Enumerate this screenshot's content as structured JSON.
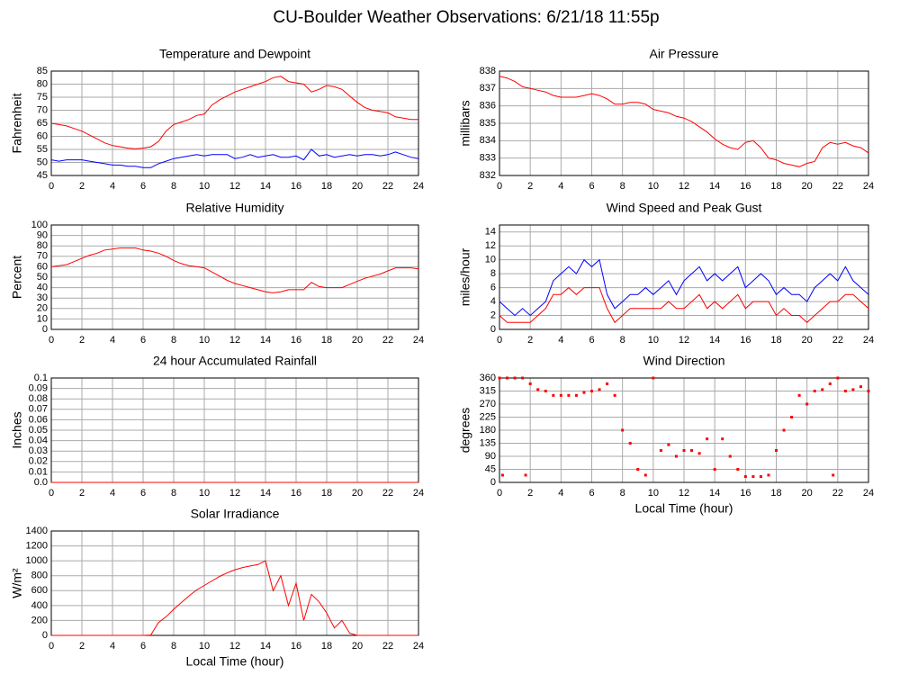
{
  "title": "CU-Boulder Weather Observations: 6/21/18 11:55p",
  "chart_data": [
    {
      "type": "line",
      "title": "Temperature and Dewpoint",
      "ylabel": "Fahrenheit",
      "x": [
        0,
        0.5,
        1,
        1.5,
        2,
        2.5,
        3,
        3.5,
        4,
        4.5,
        5,
        5.5,
        6,
        6.5,
        7,
        7.5,
        8,
        8.5,
        9,
        9.5,
        10,
        10.5,
        11,
        11.5,
        12,
        12.5,
        13,
        13.5,
        14,
        14.5,
        15,
        15.5,
        16,
        16.5,
        17,
        17.5,
        18,
        18.5,
        19,
        19.5,
        20,
        20.5,
        21,
        21.5,
        22,
        22.5,
        23,
        23.5,
        24
      ],
      "series": [
        {
          "color": "#ff0000",
          "values": [
            65,
            64.5,
            64,
            63,
            62,
            60.5,
            59,
            57.5,
            56.5,
            56,
            55.5,
            55.2,
            55.5,
            56,
            58,
            62,
            64.5,
            65.5,
            66.5,
            68,
            68.5,
            72,
            74,
            75.5,
            77,
            78,
            79,
            80,
            81,
            82.5,
            83,
            81,
            80.5,
            80,
            77,
            78,
            79.5,
            79,
            78,
            75.5,
            73,
            71,
            70,
            69.5,
            69,
            67.5,
            67,
            66.5,
            66.5
          ]
        },
        {
          "color": "#0000ff",
          "values": [
            51,
            50.5,
            51,
            51,
            51,
            50.5,
            50,
            49.5,
            49,
            49,
            48.5,
            48.5,
            48,
            48,
            49.5,
            50.5,
            51.5,
            52,
            52.5,
            53,
            52.5,
            53,
            53,
            53,
            51.5,
            52,
            53,
            52,
            52.5,
            53,
            52,
            52,
            52.5,
            51,
            55,
            52.5,
            53,
            52,
            52.5,
            53,
            52.5,
            53,
            53,
            52.5,
            53,
            54,
            53,
            52,
            51.5
          ]
        }
      ],
      "xlim": [
        0,
        24
      ],
      "xticks": [
        0,
        2,
        4,
        6,
        8,
        10,
        12,
        14,
        16,
        18,
        20,
        22,
        24
      ],
      "ylim": [
        45,
        85
      ],
      "yticks": [
        45,
        50,
        55,
        60,
        65,
        70,
        75,
        80,
        85
      ],
      "grid": true
    },
    {
      "type": "line",
      "title": "Air Pressure",
      "ylabel": "millibars",
      "x": [
        0,
        0.5,
        1,
        1.5,
        2,
        2.5,
        3,
        3.5,
        4,
        4.5,
        5,
        5.5,
        6,
        6.5,
        7,
        7.5,
        8,
        8.5,
        9,
        9.5,
        10,
        10.5,
        11,
        11.5,
        12,
        12.5,
        13,
        13.5,
        14,
        14.5,
        15,
        15.5,
        16,
        16.5,
        17,
        17.5,
        18,
        18.5,
        19,
        19.5,
        20,
        20.5,
        21,
        21.5,
        22,
        22.5,
        23,
        23.5,
        24
      ],
      "series": [
        {
          "color": "#ff0000",
          "values": [
            837.7,
            837.6,
            837.4,
            837.1,
            837,
            836.9,
            836.8,
            836.6,
            836.5,
            836.5,
            836.5,
            836.6,
            836.7,
            836.6,
            836.4,
            836.1,
            836.1,
            836.2,
            836.2,
            836.1,
            835.8,
            835.7,
            835.6,
            835.4,
            835.3,
            835.1,
            834.8,
            834.5,
            834.1,
            833.8,
            833.6,
            833.5,
            833.9,
            834,
            833.6,
            833,
            832.9,
            832.7,
            832.6,
            832.5,
            832.7,
            832.8,
            833.6,
            833.9,
            833.8,
            833.9,
            833.7,
            833.6,
            833.3
          ]
        }
      ],
      "xlim": [
        0,
        24
      ],
      "xticks": [
        0,
        2,
        4,
        6,
        8,
        10,
        12,
        14,
        16,
        18,
        20,
        22,
        24
      ],
      "ylim": [
        832,
        838
      ],
      "yticks": [
        832,
        833,
        834,
        835,
        836,
        837,
        838
      ],
      "grid": true
    },
    {
      "type": "line",
      "title": "Relative Humidity",
      "ylabel": "Percent",
      "x": [
        0,
        0.5,
        1,
        1.5,
        2,
        2.5,
        3,
        3.5,
        4,
        4.5,
        5,
        5.5,
        6,
        6.5,
        7,
        7.5,
        8,
        8.5,
        9,
        9.5,
        10,
        10.5,
        11,
        11.5,
        12,
        12.5,
        13,
        13.5,
        14,
        14.5,
        15,
        15.5,
        16,
        16.5,
        17,
        17.5,
        18,
        18.5,
        19,
        19.5,
        20,
        20.5,
        21,
        21.5,
        22,
        22.5,
        23,
        23.5,
        24
      ],
      "series": [
        {
          "color": "#ff0000",
          "values": [
            60,
            61,
            62,
            65,
            68,
            71,
            73,
            76,
            77,
            78,
            78,
            78,
            76,
            75,
            73,
            70,
            66,
            63,
            61,
            60,
            59,
            55,
            51,
            47,
            44,
            42,
            40,
            38,
            36,
            35,
            36,
            38,
            38,
            38,
            45,
            41,
            40,
            40,
            40,
            43,
            46,
            49,
            51,
            53,
            56,
            59,
            59,
            59,
            58
          ]
        }
      ],
      "xlim": [
        0,
        24
      ],
      "xticks": [
        0,
        2,
        4,
        6,
        8,
        10,
        12,
        14,
        16,
        18,
        20,
        22,
        24
      ],
      "ylim": [
        0,
        100
      ],
      "yticks": [
        0,
        10,
        20,
        30,
        40,
        50,
        60,
        70,
        80,
        90,
        100
      ],
      "grid": true
    },
    {
      "type": "line",
      "title": "Wind Speed and Peak Gust",
      "ylabel": "miles/hour",
      "x": [
        0,
        0.5,
        1,
        1.5,
        2,
        2.5,
        3,
        3.5,
        4,
        4.5,
        5,
        5.5,
        6,
        6.5,
        7,
        7.5,
        8,
        8.5,
        9,
        9.5,
        10,
        10.5,
        11,
        11.5,
        12,
        12.5,
        13,
        13.5,
        14,
        14.5,
        15,
        15.5,
        16,
        16.5,
        17,
        17.5,
        18,
        18.5,
        19,
        19.5,
        20,
        20.5,
        21,
        21.5,
        22,
        22.5,
        23,
        23.5,
        24
      ],
      "series": [
        {
          "color": "#0000ff",
          "values": [
            4,
            3,
            2,
            3,
            2,
            3,
            4,
            7,
            8,
            9,
            8,
            10,
            9,
            10,
            5,
            3,
            4,
            5,
            5,
            6,
            5,
            6,
            7,
            5,
            7,
            8,
            9,
            7,
            8,
            7,
            8,
            9,
            6,
            7,
            8,
            7,
            5,
            6,
            5,
            5,
            4,
            6,
            7,
            8,
            7,
            9,
            7,
            6,
            5
          ]
        },
        {
          "color": "#ff0000",
          "values": [
            2,
            1,
            1,
            1,
            1,
            2,
            3,
            5,
            5,
            6,
            5,
            6,
            6,
            6,
            3,
            1,
            2,
            3,
            3,
            3,
            3,
            3,
            4,
            3,
            3,
            4,
            5,
            3,
            4,
            3,
            4,
            5,
            3,
            4,
            4,
            4,
            2,
            3,
            2,
            2,
            1,
            2,
            3,
            4,
            4,
            5,
            5,
            4,
            3
          ]
        }
      ],
      "xlim": [
        0,
        24
      ],
      "xticks": [
        0,
        2,
        4,
        6,
        8,
        10,
        12,
        14,
        16,
        18,
        20,
        22,
        24
      ],
      "ylim": [
        0,
        15
      ],
      "yticks": [
        0,
        2,
        4,
        6,
        8,
        10,
        12,
        14
      ],
      "grid": true
    },
    {
      "type": "line",
      "title": "24 hour Accumulated Rainfall",
      "ylabel": "Inches",
      "x": [
        0,
        24
      ],
      "series": [
        {
          "color": "#ff0000",
          "values": [
            0,
            0
          ]
        }
      ],
      "xlim": [
        0,
        24
      ],
      "xticks": [
        0,
        2,
        4,
        6,
        8,
        10,
        12,
        14,
        16,
        18,
        20,
        22,
        24
      ],
      "ylim": [
        0,
        0.1
      ],
      "yticks": [
        {
          "value": 0,
          "label": "0.0"
        },
        0.01,
        0.02,
        0.03,
        0.04,
        0.05,
        0.06,
        0.07,
        0.08,
        0.09,
        0.1
      ],
      "grid": true
    },
    {
      "type": "scatter",
      "title": "Wind Direction",
      "ylabel": "degrees",
      "xlabel": "Local Time (hour)",
      "x": [
        0,
        0.2,
        0.5,
        1,
        1.5,
        1.7,
        2,
        2.5,
        3,
        3.5,
        4,
        4.5,
        5,
        5.5,
        6,
        6.5,
        7,
        7.5,
        8,
        8.5,
        9,
        9.5,
        10,
        10.5,
        11,
        11.5,
        12,
        12.5,
        13,
        13.5,
        14,
        14.5,
        15,
        15.5,
        16,
        16.5,
        17,
        17.5,
        18,
        18.5,
        19,
        19.5,
        20,
        20.5,
        21,
        21.5,
        21.7,
        22,
        22.5,
        23,
        23.5,
        24
      ],
      "series": [
        {
          "color": "#ff0000",
          "values": [
            360,
            25,
            360,
            360,
            360,
            25,
            340,
            320,
            315,
            300,
            300,
            300,
            300,
            310,
            315,
            320,
            340,
            300,
            180,
            135,
            45,
            25,
            360,
            110,
            130,
            90,
            110,
            110,
            100,
            150,
            45,
            150,
            90,
            45,
            20,
            20,
            20,
            25,
            110,
            180,
            225,
            300,
            270,
            315,
            320,
            340,
            25,
            360,
            315,
            320,
            330,
            315
          ]
        }
      ],
      "xlim": [
        0,
        24
      ],
      "xticks": [
        0,
        2,
        4,
        6,
        8,
        10,
        12,
        14,
        16,
        18,
        20,
        22,
        24
      ],
      "ylim": [
        0,
        360
      ],
      "yticks": [
        0,
        45,
        90,
        135,
        180,
        225,
        270,
        315,
        360
      ],
      "grid": true
    },
    {
      "type": "line",
      "title": "Solar Irradiance",
      "ylabel": "W/m²",
      "xlabel": "Local Time (hour)",
      "x": [
        0,
        0.5,
        1,
        1.5,
        2,
        2.5,
        3,
        3.5,
        4,
        4.5,
        5,
        5.5,
        6,
        6.5,
        7,
        7.5,
        8,
        8.5,
        9,
        9.5,
        10,
        10.5,
        11,
        11.5,
        12,
        12.5,
        13,
        13.5,
        14,
        14.5,
        15,
        15.5,
        16,
        16.5,
        17,
        17.5,
        18,
        18.5,
        19,
        19.5,
        20,
        20.5,
        21,
        21.5,
        22,
        22.5,
        23,
        23.5,
        24
      ],
      "series": [
        {
          "color": "#ff0000",
          "values": [
            0,
            0,
            0,
            0,
            0,
            0,
            0,
            0,
            0,
            0,
            0,
            0,
            0,
            5,
            170,
            250,
            350,
            440,
            530,
            610,
            670,
            730,
            790,
            840,
            880,
            910,
            930,
            950,
            1000,
            600,
            800,
            400,
            700,
            200,
            550,
            450,
            300,
            100,
            200,
            30,
            0,
            0,
            0,
            0,
            0,
            0,
            0,
            0,
            0
          ]
        }
      ],
      "xlim": [
        0,
        24
      ],
      "xticks": [
        0,
        2,
        4,
        6,
        8,
        10,
        12,
        14,
        16,
        18,
        20,
        22,
        24
      ],
      "ylim": [
        0,
        1400
      ],
      "yticks": [
        0,
        200,
        400,
        600,
        800,
        1000,
        1200,
        1400
      ],
      "grid": true
    }
  ]
}
